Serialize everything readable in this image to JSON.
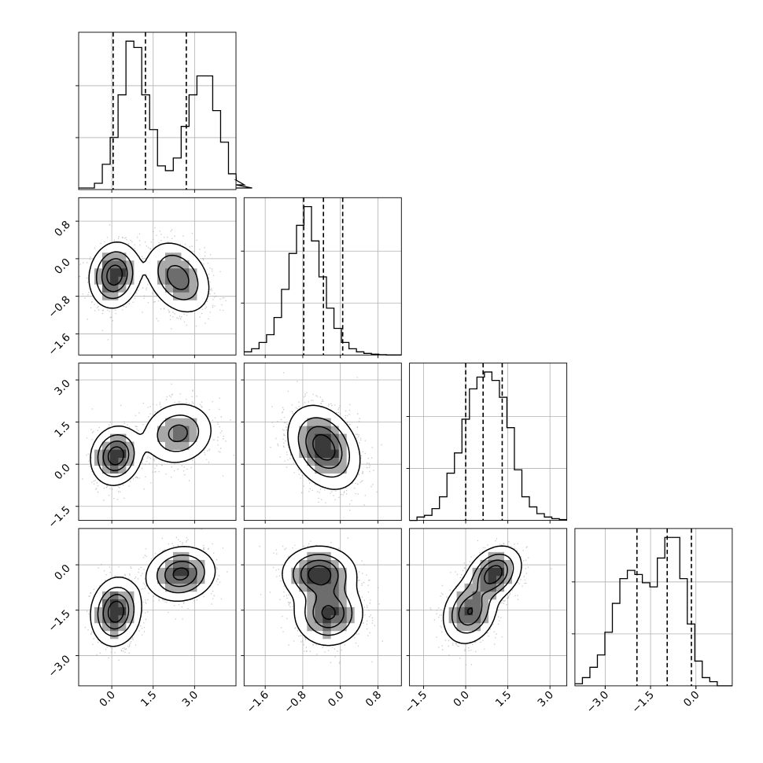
{
  "chart_data": {
    "type": "corner",
    "n_params": 4,
    "params": [
      {
        "index": 0,
        "range": [
          -1.2,
          4.5
        ],
        "ticks": [
          0.0,
          1.5,
          3.0
        ],
        "tick_labels": [
          "0.0",
          "1.5",
          "3.0"
        ],
        "quantiles": [
          0.05,
          1.22,
          2.7
        ],
        "hist": {
          "edges_start": -1.2,
          "bin_width": 0.2857,
          "counts": [
            0.01,
            0.01,
            0.04,
            0.16,
            0.33,
            0.6,
            0.94,
            0.9,
            0.6,
            0.38,
            0.15,
            0.12,
            0.2,
            0.4,
            0.6,
            0.72,
            0.72,
            0.5,
            0.3,
            0.1,
            0.06,
            0.03,
            0.01
          ]
        },
        "modes": [
          {
            "mu": 0.1,
            "sd": 0.45,
            "w": 0.5
          },
          {
            "mu": 2.5,
            "sd": 0.55,
            "w": 0.5
          }
        ]
      },
      {
        "index": 1,
        "range": [
          -2.05,
          1.3
        ],
        "ticks": [
          -1.6,
          -0.8,
          0.0,
          0.8
        ],
        "tick_labels": [
          "−1.6",
          "−0.8",
          "0.0",
          "0.8"
        ],
        "quantiles": [
          -0.78,
          -0.36,
          0.05
        ],
        "hist": {
          "edges_start": -2.05,
          "bin_width": 0.1595,
          "counts": [
            0.02,
            0.04,
            0.08,
            0.13,
            0.24,
            0.42,
            0.65,
            0.83,
            0.95,
            0.73,
            0.5,
            0.3,
            0.17,
            0.08,
            0.04,
            0.02,
            0.01,
            0.005,
            0.002,
            0.0,
            0.0
          ]
        },
        "modes": [
          {
            "mu": -0.35,
            "sd": 0.33,
            "w": 1.0
          }
        ]
      },
      {
        "index": 2,
        "range": [
          -2.0,
          3.6
        ],
        "ticks": [
          -1.5,
          0.0,
          1.5,
          3.0
        ],
        "tick_labels": [
          "−1.5",
          "0.0",
          "1.5",
          "3.0"
        ],
        "quantiles": [
          0.0,
          0.62,
          1.3
        ],
        "hist": {
          "edges_start": -2.0,
          "bin_width": 0.2667,
          "counts": [
            0.0,
            0.02,
            0.03,
            0.07,
            0.14,
            0.28,
            0.4,
            0.6,
            0.78,
            0.85,
            0.88,
            0.83,
            0.73,
            0.55,
            0.3,
            0.14,
            0.08,
            0.04,
            0.02,
            0.01,
            0.005
          ]
        },
        "modes": [
          {
            "mu": 0.65,
            "sd": 0.62,
            "w": 1.0
          }
        ]
      },
      {
        "index": 3,
        "range": [
          -4.0,
          1.2
        ],
        "ticks": [
          -3.0,
          -1.5,
          0.0
        ],
        "tick_labels": [
          "−3.0",
          "−1.5",
          "0.0"
        ],
        "quantiles": [
          -1.95,
          -0.95,
          -0.15
        ],
        "hist": {
          "edges_start": -4.0,
          "bin_width": 0.2476,
          "counts": [
            0.01,
            0.04,
            0.09,
            0.15,
            0.26,
            0.4,
            0.52,
            0.56,
            0.54,
            0.5,
            0.48,
            0.62,
            0.72,
            0.72,
            0.52,
            0.3,
            0.12,
            0.04,
            0.02,
            0.0,
            0.0
          ]
        },
        "modes": [
          {
            "mu": -1.6,
            "sd": 0.5,
            "w": 0.5
          },
          {
            "mu": -0.3,
            "sd": 0.45,
            "w": 0.5
          }
        ]
      }
    ],
    "pairs": [
      {
        "x": 0,
        "y": 1,
        "clusters": [
          {
            "cx": 0.1,
            "cy": -0.35,
            "sx": 0.42,
            "sy": 0.32,
            "rho": 0.1,
            "w": 0.5
          },
          {
            "cx": 2.4,
            "cy": -0.4,
            "sx": 0.55,
            "sy": 0.36,
            "rho": -0.3,
            "w": 0.5
          }
        ]
      },
      {
        "x": 0,
        "y": 2,
        "clusters": [
          {
            "cx": 0.15,
            "cy": 0.3,
            "sx": 0.42,
            "sy": 0.48,
            "rho": 0.1,
            "w": 0.5
          },
          {
            "cx": 2.4,
            "cy": 1.1,
            "sx": 0.6,
            "sy": 0.52,
            "rho": 0.1,
            "w": 0.5
          }
        ]
      },
      {
        "x": 0,
        "y": 3,
        "clusters": [
          {
            "cx": 0.15,
            "cy": -1.55,
            "sx": 0.42,
            "sy": 0.52,
            "rho": 0.1,
            "w": 0.5
          },
          {
            "cx": 2.5,
            "cy": -0.3,
            "sx": 0.58,
            "sy": 0.42,
            "rho": 0.1,
            "w": 0.5
          }
        ]
      },
      {
        "x": 1,
        "y": 2,
        "clusters": [
          {
            "cx": -0.35,
            "cy": 0.6,
            "sx": 0.35,
            "sy": 0.68,
            "rho": -0.3,
            "w": 1.0
          }
        ]
      },
      {
        "x": 1,
        "y": 3,
        "clusters": [
          {
            "cx": -0.45,
            "cy": -0.3,
            "sx": 0.36,
            "sy": 0.42,
            "rho": 0.0,
            "w": 0.5
          },
          {
            "cx": -0.25,
            "cy": -1.6,
            "sx": 0.34,
            "sy": 0.5,
            "rho": 0.0,
            "w": 0.5
          }
        ]
      },
      {
        "x": 2,
        "y": 3,
        "clusters": [
          {
            "cx": 1.0,
            "cy": -0.3,
            "sx": 0.45,
            "sy": 0.42,
            "rho": 0.3,
            "w": 0.5
          },
          {
            "cx": 0.15,
            "cy": -1.55,
            "sx": 0.45,
            "sy": 0.5,
            "rho": 0.2,
            "w": 0.5
          }
        ]
      }
    ]
  },
  "colors": {
    "scatter": "#9a9a9a",
    "hist": "#000000",
    "grid": "#b0b0b0"
  }
}
